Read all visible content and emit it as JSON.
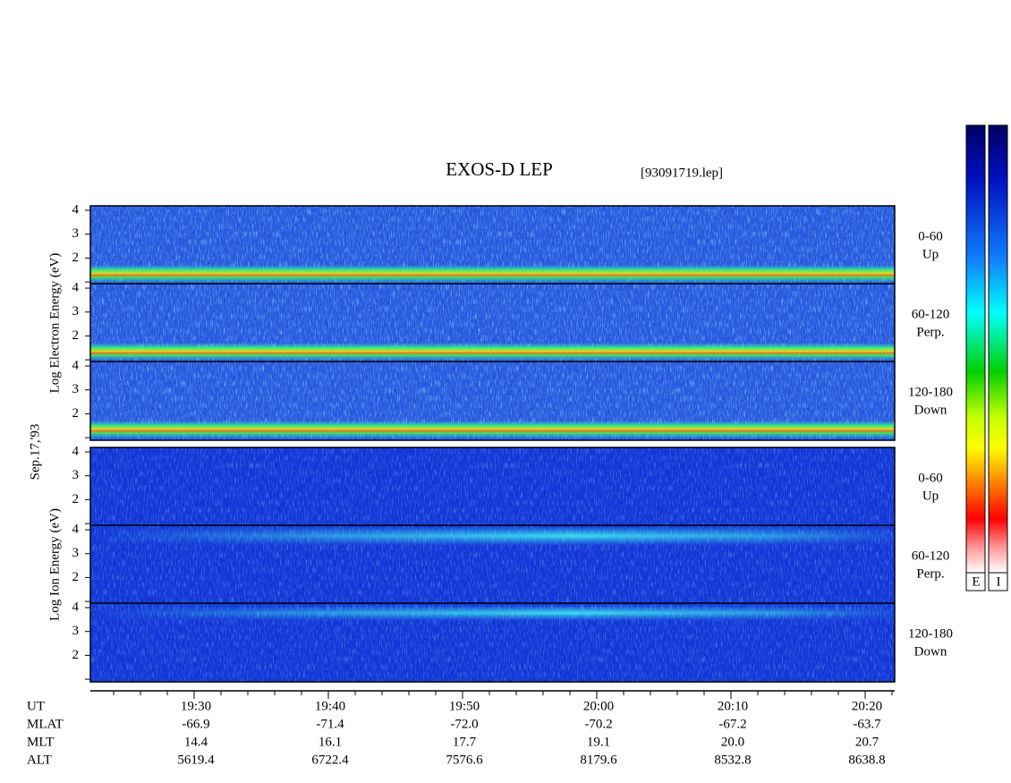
{
  "title": "EXOS-D LEP",
  "file": "[93091719.lep]",
  "date": "Sep.17,'93",
  "electron_label": "Log  Electron  Energy (eV)",
  "ion_label": "Log  Ion  Energy (eV)",
  "yticks": [
    2,
    3,
    4
  ],
  "panels": [
    {
      "range": "0-60",
      "direction": "Up"
    },
    {
      "range": "60-120",
      "direction": "Perp."
    },
    {
      "range": "120-180",
      "direction": "Down"
    },
    {
      "range": "0-60",
      "direction": "Up"
    },
    {
      "range": "60-120",
      "direction": "Perp."
    },
    {
      "range": "120-180",
      "direction": "Down"
    }
  ],
  "time_rows": [
    {
      "label": "UT",
      "values": [
        "19:30",
        "19:40",
        "19:50",
        "20:00",
        "20:10",
        "20:20"
      ]
    },
    {
      "label": "MLAT",
      "values": [
        "-66.9",
        "-71.4",
        "-72.0",
        "-70.2",
        "-67.2",
        "-63.7"
      ]
    },
    {
      "label": "MLT",
      "values": [
        "14.4",
        "16.1",
        "17.7",
        "19.1",
        "20.0",
        "20.7"
      ]
    },
    {
      "label": "ALT",
      "values": [
        "5619.4",
        "6722.4",
        "7576.6",
        "8179.6",
        "8532.8",
        "8638.8"
      ]
    }
  ],
  "colorbar_labels": [
    "E",
    "I"
  ]
}
